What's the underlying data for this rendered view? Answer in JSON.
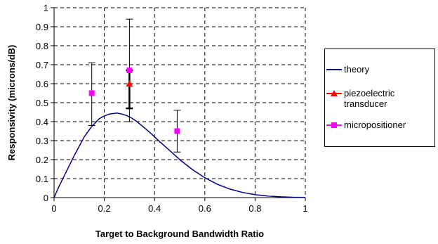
{
  "chart_data": {
    "type": "scatter",
    "title": "",
    "xlabel": "Target to Background Bandwidth Ratio",
    "ylabel": "Responsivity (microns/dB)",
    "xlim": [
      0,
      1
    ],
    "ylim": [
      0,
      1
    ],
    "x_ticks": [
      "0",
      "0.2",
      "0.4",
      "0.6",
      "0.8",
      "1"
    ],
    "y_ticks": [
      "0",
      "0.1",
      "0.2",
      "0.3",
      "0.4",
      "0.5",
      "0.6",
      "0.7",
      "0.8",
      "0.9",
      "1"
    ],
    "grid": "dashed",
    "legend_position": "right",
    "series": [
      {
        "name": "theory",
        "kind": "line",
        "color": "#000080",
        "x": [
          0,
          0.02,
          0.05,
          0.08,
          0.1,
          0.12,
          0.15,
          0.18,
          0.2,
          0.22,
          0.25,
          0.27,
          0.29,
          0.31,
          0.33,
          0.35,
          0.38,
          0.4,
          0.42,
          0.45,
          0.48,
          0.5,
          0.55,
          0.6,
          0.65,
          0.7,
          0.75,
          0.8,
          0.85,
          0.9,
          0.95,
          1.0
        ],
        "y": [
          0,
          0.06,
          0.14,
          0.22,
          0.27,
          0.32,
          0.375,
          0.415,
          0.43,
          0.44,
          0.445,
          0.44,
          0.432,
          0.418,
          0.4,
          0.378,
          0.345,
          0.32,
          0.295,
          0.26,
          0.225,
          0.2,
          0.148,
          0.105,
          0.07,
          0.045,
          0.027,
          0.015,
          0.008,
          0.004,
          0.002,
          0.001
        ]
      },
      {
        "name": "piezoelectric\ntransducer",
        "kind": "marker",
        "marker": "triangle",
        "color": "#ff0000",
        "x": [
          0.3
        ],
        "y": [
          0.6
        ],
        "err_low": [
          0.47
        ],
        "err_high": [
          0.67
        ]
      },
      {
        "name": "micropositioner",
        "kind": "marker",
        "marker": "square",
        "color": "#ff00ff",
        "x": [
          0.15,
          0.3,
          0.49
        ],
        "y": [
          0.55,
          0.67,
          0.35
        ],
        "err_low": [
          0.38,
          0.4,
          0.24
        ],
        "err_high": [
          0.71,
          0.94,
          0.46
        ]
      }
    ]
  }
}
